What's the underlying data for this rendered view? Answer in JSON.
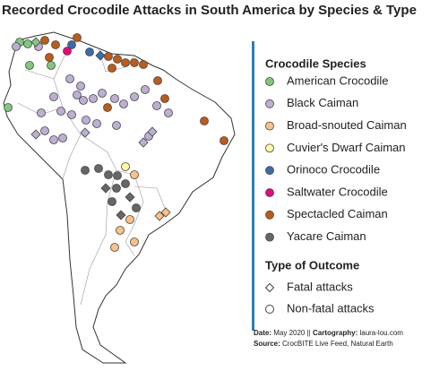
{
  "title": "Recorded Crocodile Attacks in South America by Species & Type",
  "legend": {
    "species_title": "Crocodile Species",
    "species": [
      {
        "label": "American Crocodile",
        "color": "#7fc97f"
      },
      {
        "label": "Black Caiman",
        "color": "#beaed4"
      },
      {
        "label": "Broad-snouted Caiman",
        "color": "#fdc086"
      },
      {
        "label": "Cuvier's Dwarf Caiman",
        "color": "#ffff99"
      },
      {
        "label": "Orinoco Crocodile",
        "color": "#386cb0"
      },
      {
        "label": "Saltwater Crocodile",
        "color": "#f0027f"
      },
      {
        "label": "Spectacled Caiman",
        "color": "#bf5b17"
      },
      {
        "label": "Yacare Caiman",
        "color": "#666666"
      }
    ],
    "outcome_title": "Type of Outcome",
    "outcomes": [
      {
        "label": "Fatal attacks",
        "shape": "diamond"
      },
      {
        "label": "Non-fatal attacks",
        "shape": "circle"
      }
    ]
  },
  "credits": {
    "date_label": "Date:",
    "date": "May 2020 ||",
    "cartography_label": "Cartography:",
    "cartography": "laura-lou.com",
    "source_label": "Source:",
    "source": "CrocBITE Live Feed, Natural Earth"
  }
}
